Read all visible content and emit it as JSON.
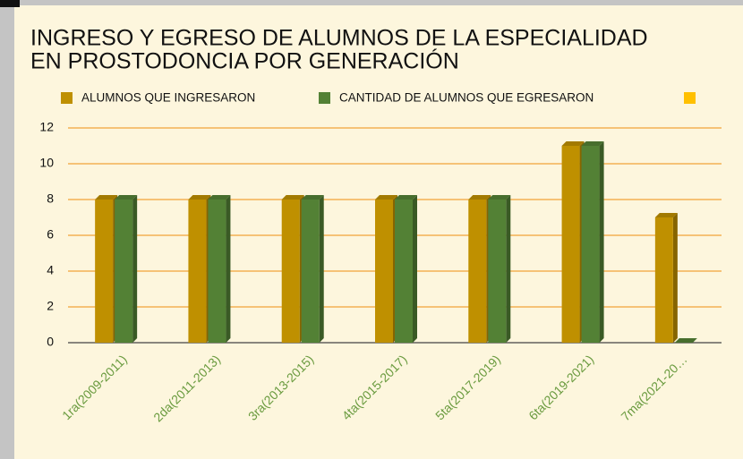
{
  "chart_data": {
    "type": "bar",
    "title": [
      "INGRESO Y EGRESO DE ALUMNOS DE LA ESPECIALIDAD",
      "EN PROSTODONCIA  POR GENERACIÓN"
    ],
    "categories": [
      "1ra(2009-2011)",
      "2da(2011-2013)",
      "3ra(2013-2015)",
      "4ta(2015-2017)",
      "5ta(2017-2019)",
      "6ta(2019-2021)",
      "7ma(2021-20…"
    ],
    "series": [
      {
        "name": "ALUMNOS QUE INGRESARON",
        "color": "#bf9000",
        "values": [
          8,
          8,
          8,
          8,
          8,
          11,
          7
        ]
      },
      {
        "name": "CANTIDAD DE ALUMNOS QUE EGRESARON",
        "color": "#538135",
        "values": [
          8,
          8,
          8,
          8,
          8,
          11,
          0
        ]
      },
      {
        "color": "#ffc000",
        "values": [
          null,
          null,
          null,
          null,
          null,
          null,
          null
        ]
      }
    ],
    "ylim": [
      0,
      12
    ],
    "yticks": [
      0,
      2,
      4,
      6,
      8,
      10,
      12
    ],
    "grid": true,
    "legend": "top"
  }
}
